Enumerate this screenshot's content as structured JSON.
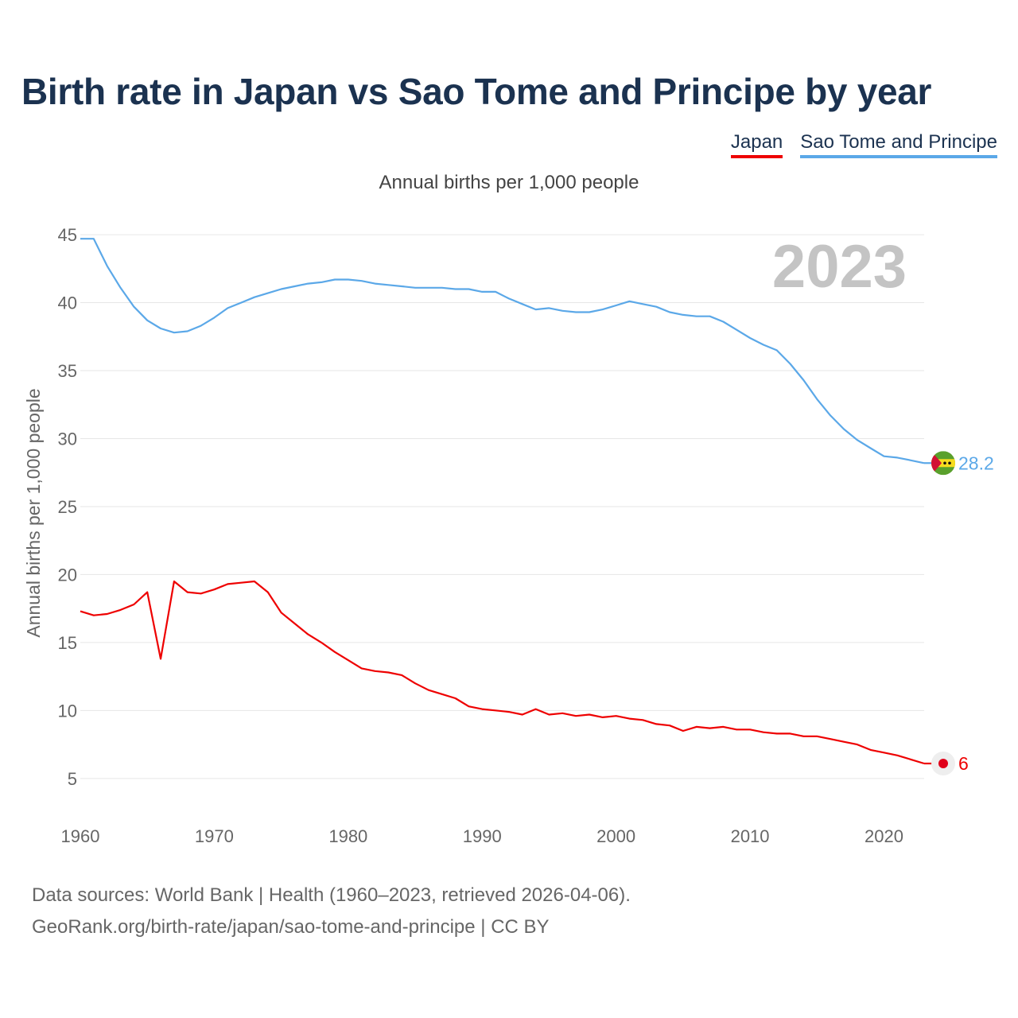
{
  "title": "Birth rate in Japan vs Sao Tome and Principe by year",
  "subtitle": "Annual births per 1,000 people",
  "legend": [
    {
      "label": "Japan",
      "color": "#ee0000"
    },
    {
      "label": "Sao Tome and Principe",
      "color": "#5ba8e8"
    }
  ],
  "footer": {
    "line1": "Data sources: World Bank | Health (1960–2023, retrieved 2026-04-06).",
    "line2": "GeoRank.org/birth-rate/japan/sao-tome-and-principe | CC BY"
  },
  "chart_data": {
    "type": "line",
    "title": "Birth rate in Japan vs Sao Tome and Principe by year",
    "ylabel": "Annual births per 1,000 people",
    "xlabel": "",
    "xlim": [
      1960,
      2023
    ],
    "ylim": [
      3,
      46
    ],
    "yticks": [
      5,
      10,
      15,
      20,
      25,
      30,
      35,
      40,
      45
    ],
    "xticks": [
      1960,
      1970,
      1980,
      1990,
      2000,
      2010,
      2020
    ],
    "year_label": "2023",
    "x": [
      1960,
      1961,
      1962,
      1963,
      1964,
      1965,
      1966,
      1967,
      1968,
      1969,
      1970,
      1971,
      1972,
      1973,
      1974,
      1975,
      1976,
      1977,
      1978,
      1979,
      1980,
      1981,
      1982,
      1983,
      1984,
      1985,
      1986,
      1987,
      1988,
      1989,
      1990,
      1991,
      1992,
      1993,
      1994,
      1995,
      1996,
      1997,
      1998,
      1999,
      2000,
      2001,
      2002,
      2003,
      2004,
      2005,
      2006,
      2007,
      2008,
      2009,
      2010,
      2011,
      2012,
      2013,
      2014,
      2015,
      2016,
      2017,
      2018,
      2019,
      2020,
      2021,
      2022,
      2023
    ],
    "series": [
      {
        "name": "Japan",
        "color": "#ee0000",
        "end_label": "6",
        "icon": "japan-flag-icon",
        "values": [
          17.3,
          17.0,
          17.1,
          17.4,
          17.8,
          18.7,
          13.8,
          19.5,
          18.7,
          18.6,
          18.9,
          19.3,
          19.4,
          19.5,
          18.7,
          17.2,
          16.4,
          15.6,
          15.0,
          14.3,
          13.7,
          13.1,
          12.9,
          12.8,
          12.6,
          12.0,
          11.5,
          11.2,
          10.9,
          10.3,
          10.1,
          10.0,
          9.9,
          9.7,
          10.1,
          9.7,
          9.8,
          9.6,
          9.7,
          9.5,
          9.6,
          9.4,
          9.3,
          9.0,
          8.9,
          8.5,
          8.8,
          8.7,
          8.8,
          8.6,
          8.6,
          8.4,
          8.3,
          8.3,
          8.1,
          8.1,
          7.9,
          7.7,
          7.5,
          7.1,
          6.9,
          6.7,
          6.4,
          6.1
        ]
      },
      {
        "name": "Sao Tome and Principe",
        "color": "#5ba8e8",
        "end_label": "28.2",
        "icon": "sao-tome-flag-icon",
        "values": [
          44.7,
          44.7,
          42.7,
          41.1,
          39.7,
          38.7,
          38.1,
          37.8,
          37.9,
          38.3,
          38.9,
          39.6,
          40.0,
          40.4,
          40.7,
          41.0,
          41.2,
          41.4,
          41.5,
          41.7,
          41.7,
          41.6,
          41.4,
          41.3,
          41.2,
          41.1,
          41.1,
          41.1,
          41.0,
          41.0,
          40.8,
          40.8,
          40.3,
          39.9,
          39.5,
          39.6,
          39.4,
          39.3,
          39.3,
          39.5,
          39.8,
          40.1,
          39.9,
          39.7,
          39.3,
          39.1,
          39.0,
          39.0,
          38.6,
          38.0,
          37.4,
          36.9,
          36.5,
          35.5,
          34.3,
          32.9,
          31.7,
          30.7,
          29.9,
          29.3,
          28.7,
          28.6,
          28.4,
          28.2
        ]
      }
    ]
  }
}
